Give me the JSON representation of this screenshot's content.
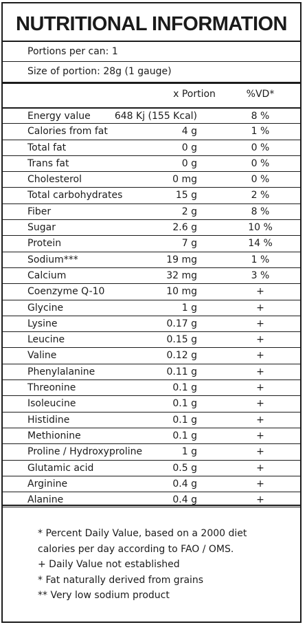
{
  "title": "NUTRITIONAL INFORMATION",
  "portions_per_can": "Portions per can: 1",
  "size_of_portion": "Size of portion: 28g (1 gauge)",
  "columns": {
    "portion": "x Portion",
    "vd": "%VD*"
  },
  "rows": [
    {
      "name": "Energy value",
      "portion": "648 Kj (155 Kcal)",
      "vd": "8 %"
    },
    {
      "name": "Calories from fat",
      "portion": "4 g",
      "vd": "1 %"
    },
    {
      "name": "Total fat",
      "portion": "0 g",
      "vd": "0 %"
    },
    {
      "name": "Trans fat",
      "portion": "0 g",
      "vd": "0 %"
    },
    {
      "name": "Cholesterol",
      "portion": "0 mg",
      "vd": "0 %"
    },
    {
      "name": "Total carbohydrates",
      "portion": "15 g",
      "vd": "2 %"
    },
    {
      "name": "Fiber",
      "portion": "2 g",
      "vd": "8 %"
    },
    {
      "name": "Sugar",
      "portion": "2.6 g",
      "vd": "10 %"
    },
    {
      "name": "Protein",
      "portion": "7 g",
      "vd": "14 %"
    },
    {
      "name": "Sodium***",
      "portion": "19 mg",
      "vd": "1 %"
    },
    {
      "name": "Calcium",
      "portion": "32 mg",
      "vd": "3 %"
    },
    {
      "name": "Coenzyme Q-10",
      "portion": "10 mg",
      "vd": "+"
    },
    {
      "name": "Glycine",
      "portion": "1 g",
      "vd": "+"
    },
    {
      "name": "Lysine",
      "portion": "0.17 g",
      "vd": "+"
    },
    {
      "name": "Leucine",
      "portion": "0.15 g",
      "vd": "+"
    },
    {
      "name": "Valine",
      "portion": "0.12 g",
      "vd": "+"
    },
    {
      "name": "Phenylalanine",
      "portion": "0.11 g",
      "vd": "+"
    },
    {
      "name": "Threonine",
      "portion": "0.1 g",
      "vd": "+"
    },
    {
      "name": "Isoleucine",
      "portion": "0.1 g",
      "vd": "+"
    },
    {
      "name": "Histidine",
      "portion": "0.1 g",
      "vd": "+"
    },
    {
      "name": "Methionine",
      "portion": "0.1 g",
      "vd": "+"
    },
    {
      "name": "Proline / Hydroxyproline",
      "portion": "1 g",
      "vd": "+"
    },
    {
      "name": "Glutamic acid",
      "portion": "0.5 g",
      "vd": "+"
    },
    {
      "name": "Arginine",
      "portion": "0.4 g",
      "vd": "+"
    },
    {
      "name": "Alanine",
      "portion": "0.4 g",
      "vd": "+"
    }
  ],
  "footnotes": [
    "* Percent Daily Value, based on a 2000 diet",
    "calories per day according to FAO / OMS.",
    "+ Daily Value not established",
    "* Fat naturally derived from grains",
    "** Very low sodium product"
  ]
}
